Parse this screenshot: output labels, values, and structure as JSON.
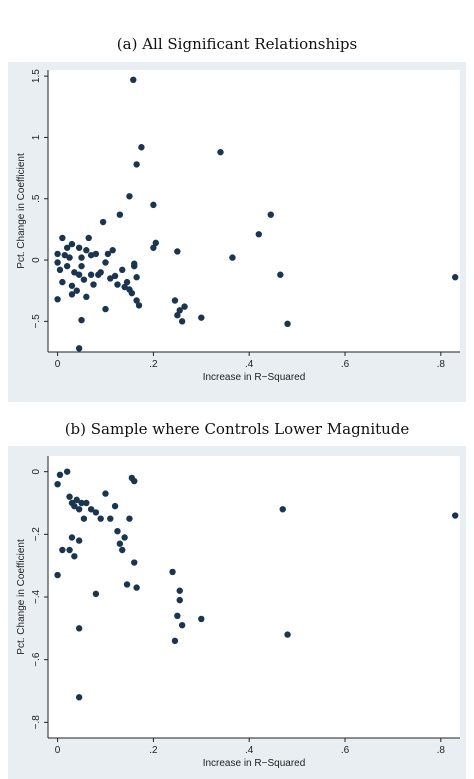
{
  "chart_data": [
    {
      "type": "scatter",
      "title": "(a) All Significant Relationships",
      "xlabel": "Increase in R−Squared",
      "ylabel": "Pct. Change in Coefficient",
      "xlim": [
        -0.02,
        0.84
      ],
      "ylim": [
        -0.75,
        1.55
      ],
      "xticks": [
        0,
        0.2,
        0.4,
        0.6,
        0.8
      ],
      "xtick_labels": [
        "0",
        ".2",
        ".4",
        ".6",
        ".8"
      ],
      "yticks": [
        -0.5,
        0,
        0.5,
        1,
        1.5
      ],
      "ytick_labels": [
        "−.5",
        "0",
        ".5",
        "1",
        "1.5"
      ],
      "grid": false,
      "points": [
        [
          0.0,
          0.05
        ],
        [
          0.0,
          -0.02
        ],
        [
          0.005,
          -0.08
        ],
        [
          0.01,
          0.18
        ],
        [
          0.015,
          0.04
        ],
        [
          0.02,
          -0.05
        ],
        [
          0.02,
          0.1
        ],
        [
          0.025,
          0.02
        ],
        [
          0.03,
          -0.28
        ],
        [
          0.03,
          0.13
        ],
        [
          0.035,
          -0.1
        ],
        [
          0.04,
          -0.25
        ],
        [
          0.045,
          -0.12
        ],
        [
          0.045,
          0.1
        ],
        [
          0.05,
          0.02
        ],
        [
          0.05,
          -0.05
        ],
        [
          0.055,
          -0.16
        ],
        [
          0.06,
          -0.3
        ],
        [
          0.06,
          0.08
        ],
        [
          0.065,
          0.18
        ],
        [
          0.07,
          0.04
        ],
        [
          0.07,
          -0.12
        ],
        [
          0.075,
          -0.2
        ],
        [
          0.08,
          0.05
        ],
        [
          0.085,
          -0.12
        ],
        [
          0.09,
          -0.1
        ],
        [
          0.095,
          0.31
        ],
        [
          0.1,
          -0.4
        ],
        [
          0.1,
          -0.02
        ],
        [
          0.105,
          0.05
        ],
        [
          0.11,
          -0.15
        ],
        [
          0.115,
          0.08
        ],
        [
          0.12,
          -0.13
        ],
        [
          0.125,
          -0.2
        ],
        [
          0.13,
          0.37
        ],
        [
          0.135,
          -0.08
        ],
        [
          0.14,
          -0.22
        ],
        [
          0.145,
          -0.18
        ],
        [
          0.15,
          0.52
        ],
        [
          0.15,
          -0.24
        ],
        [
          0.155,
          -0.27
        ],
        [
          0.16,
          -0.03
        ],
        [
          0.16,
          -0.05
        ],
        [
          0.165,
          -0.14
        ],
        [
          0.165,
          -0.33
        ],
        [
          0.165,
          0.78
        ],
        [
          0.17,
          -0.37
        ],
        [
          0.175,
          0.92
        ],
        [
          0.158,
          1.47
        ],
        [
          0.2,
          0.45
        ],
        [
          0.2,
          0.1
        ],
        [
          0.205,
          0.14
        ],
        [
          0.245,
          -0.33
        ],
        [
          0.25,
          -0.45
        ],
        [
          0.25,
          0.07
        ],
        [
          0.255,
          -0.41
        ],
        [
          0.26,
          -0.5
        ],
        [
          0.265,
          -0.38
        ],
        [
          0.3,
          -0.47
        ],
        [
          0.34,
          0.88
        ],
        [
          0.365,
          0.02
        ],
        [
          0.42,
          0.21
        ],
        [
          0.445,
          0.37
        ],
        [
          0.465,
          -0.12
        ],
        [
          0.48,
          -0.52
        ],
        [
          0.83,
          -0.14
        ],
        [
          0.05,
          -0.49
        ],
        [
          0.045,
          -0.72
        ],
        [
          0.0,
          -0.32
        ],
        [
          0.01,
          -0.18
        ],
        [
          0.03,
          -0.21
        ]
      ]
    },
    {
      "type": "scatter",
      "title": "(b) Sample where Controls Lower Magnitude",
      "xlabel": "Increase in R−Squared",
      "ylabel": "Pct. Change in Coefficient",
      "xlim": [
        -0.02,
        0.84
      ],
      "ylim": [
        -0.85,
        0.05
      ],
      "xticks": [
        0,
        0.2,
        0.4,
        0.6,
        0.8
      ],
      "xtick_labels": [
        "0",
        ".2",
        ".4",
        ".6",
        ".8"
      ],
      "yticks": [
        -0.8,
        -0.6,
        -0.4,
        -0.2,
        0
      ],
      "ytick_labels": [
        "−.8",
        "−.6",
        "−.4",
        "−.2",
        "0"
      ],
      "grid": false,
      "points": [
        [
          0.0,
          -0.04
        ],
        [
          0.005,
          -0.01
        ],
        [
          0.02,
          0.0
        ],
        [
          0.0,
          -0.33
        ],
        [
          0.01,
          -0.25
        ],
        [
          0.025,
          -0.08
        ],
        [
          0.03,
          -0.1
        ],
        [
          0.035,
          -0.11
        ],
        [
          0.04,
          -0.09
        ],
        [
          0.045,
          -0.12
        ],
        [
          0.05,
          -0.1
        ],
        [
          0.055,
          -0.15
        ],
        [
          0.025,
          -0.25
        ],
        [
          0.03,
          -0.21
        ],
        [
          0.035,
          -0.27
        ],
        [
          0.045,
          -0.22
        ],
        [
          0.06,
          -0.1
        ],
        [
          0.07,
          -0.12
        ],
        [
          0.08,
          -0.13
        ],
        [
          0.09,
          -0.15
        ],
        [
          0.1,
          -0.07
        ],
        [
          0.11,
          -0.15
        ],
        [
          0.12,
          -0.11
        ],
        [
          0.125,
          -0.19
        ],
        [
          0.13,
          -0.23
        ],
        [
          0.135,
          -0.25
        ],
        [
          0.14,
          -0.21
        ],
        [
          0.145,
          -0.36
        ],
        [
          0.15,
          -0.15
        ],
        [
          0.155,
          -0.02
        ],
        [
          0.16,
          -0.03
        ],
        [
          0.16,
          -0.29
        ],
        [
          0.165,
          -0.37
        ],
        [
          0.08,
          -0.39
        ],
        [
          0.045,
          -0.5
        ],
        [
          0.045,
          -0.72
        ],
        [
          0.24,
          -0.32
        ],
        [
          0.25,
          -0.46
        ],
        [
          0.245,
          -0.54
        ],
        [
          0.255,
          -0.41
        ],
        [
          0.255,
          -0.38
        ],
        [
          0.26,
          -0.49
        ],
        [
          0.3,
          -0.47
        ],
        [
          0.47,
          -0.12
        ],
        [
          0.48,
          -0.52
        ],
        [
          0.83,
          -0.14
        ]
      ]
    }
  ],
  "colors": {
    "panel_bg": "#e8eef2",
    "point": "#1a3550",
    "axis": "#222222"
  }
}
